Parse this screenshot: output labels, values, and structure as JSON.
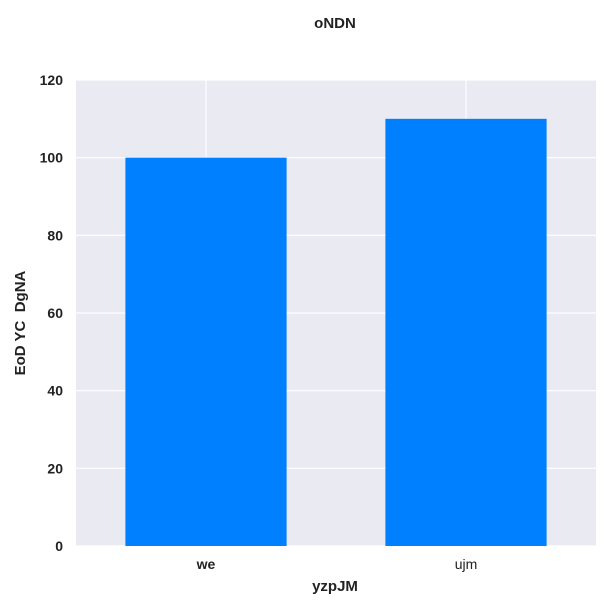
{
  "chart_data": {
    "type": "bar",
    "title": "oNDN",
    "xlabel": "yzpJM",
    "ylabel": "EoD YC  DgNA",
    "categories": [
      "we",
      "ujm"
    ],
    "values": [
      100,
      110
    ],
    "ylim": [
      0,
      120
    ],
    "yticks": [
      "0",
      "20",
      "40",
      "60",
      "80",
      "100",
      "120"
    ],
    "grid": true,
    "colors": {
      "bar": "#0080ff",
      "plot_background": "#eaeaf2",
      "grid": "#ffffff"
    }
  }
}
